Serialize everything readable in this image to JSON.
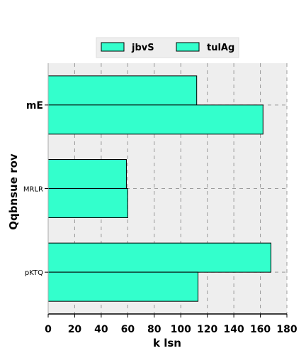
{
  "chart_data": {
    "type": "bar",
    "orientation": "horizontal",
    "categories": [
      "mE",
      "MRLR",
      "pKTQ"
    ],
    "series": [
      {
        "name": "jbvS",
        "values": [
          112,
          59,
          168
        ],
        "color": "#33ffcc"
      },
      {
        "name": "tulAg",
        "values": [
          162,
          60,
          113
        ],
        "color": "#33ffcc"
      }
    ],
    "xlabel": "k lsn",
    "ylabel": "Qqbnsue rov",
    "xlim": [
      0,
      180
    ],
    "xticks": [
      0,
      20,
      40,
      60,
      80,
      100,
      120,
      140,
      160,
      180
    ],
    "grid": true,
    "legend_position": "top",
    "background_color": "#eeeeee",
    "bar_edge_color": "#000000"
  }
}
